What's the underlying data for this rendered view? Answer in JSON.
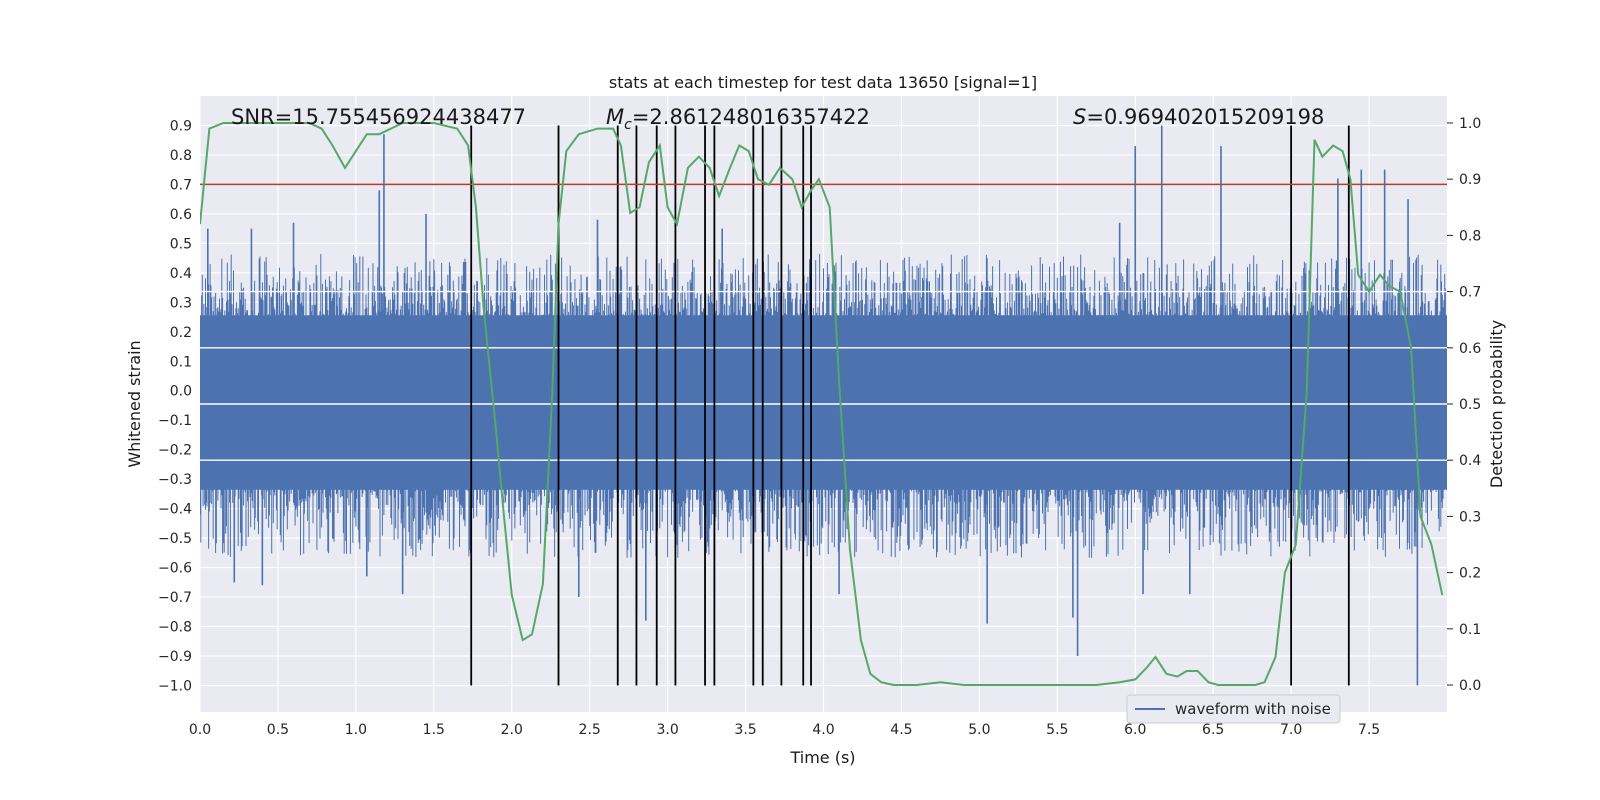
{
  "chart_data": {
    "type": "line",
    "title": "stats at each timestep for test data 13650 [signal=1]",
    "xlabel": "Time (s)",
    "ylabel": "Whitened strain",
    "y2label": "Detection probability",
    "xlim": [
      0.0,
      8.0
    ],
    "ylim": [
      -1.09,
      1.0
    ],
    "y2lim": [
      -0.048,
      1.048
    ],
    "x_ticks": [
      0.0,
      0.5,
      1.0,
      1.5,
      2.0,
      2.5,
      3.0,
      3.5,
      4.0,
      4.5,
      5.0,
      5.5,
      6.0,
      6.5,
      7.0,
      7.5
    ],
    "x_tick_labels": [
      "0.0",
      "0.5",
      "1.0",
      "1.5",
      "2.0",
      "2.5",
      "3.0",
      "3.5",
      "4.0",
      "4.5",
      "5.0",
      "5.5",
      "6.0",
      "6.5",
      "7.0",
      "7.5"
    ],
    "y_ticks": [
      0.9,
      0.8,
      0.7,
      0.6,
      0.5,
      0.4,
      0.3,
      0.2,
      0.1,
      0.0,
      -0.1,
      -0.2,
      -0.3,
      -0.4,
      -0.5,
      -0.6,
      -0.7,
      -0.8,
      -0.9,
      -1.0
    ],
    "y_tick_labels": [
      "0.9",
      "0.8",
      "0.7",
      "0.6",
      "0.5",
      "0.4",
      "0.3",
      "0.2",
      "0.1",
      "0.0",
      "−0.1",
      "−0.2",
      "−0.3",
      "−0.4",
      "−0.5",
      "−0.6",
      "−0.7",
      "−0.8",
      "−0.9",
      "−1.0"
    ],
    "y2_ticks": [
      1.0,
      0.9,
      0.8,
      0.7,
      0.6,
      0.5,
      0.4,
      0.3,
      0.2,
      0.1,
      0.0
    ],
    "y2_tick_labels": [
      "1.0",
      "0.9",
      "0.8",
      "0.7",
      "0.6",
      "0.5",
      "0.4",
      "0.3",
      "0.2",
      "0.1",
      "0.0"
    ],
    "annotations": {
      "snr": "SNR=15.755456924438477",
      "mc_symbol": "M",
      "mc_sub": "c",
      "mc_value": "=2.861248016357422",
      "s_symbol": "S",
      "s_value": "=0.969402015209198"
    },
    "legend": {
      "label": "waveform with noise",
      "position": "lower-right"
    },
    "threshold": {
      "value": 0.7,
      "axis": "left",
      "color": "#c0392b"
    },
    "vertical_markers": [
      1.74,
      2.3,
      2.68,
      2.8,
      2.93,
      3.05,
      3.24,
      3.3,
      3.55,
      3.61,
      3.73,
      3.87,
      3.92,
      7.0,
      7.37
    ],
    "vertical_marker_range": [
      -1.0,
      0.9
    ],
    "waveform": {
      "name": "waveform with noise",
      "color": "#4c72b0",
      "envelope_pos": 0.32,
      "envelope_neg": -0.42,
      "spikes": [
        {
          "x": 0.05,
          "y": 0.55
        },
        {
          "x": 0.33,
          "y": 0.55
        },
        {
          "x": 0.6,
          "y": 0.57
        },
        {
          "x": 1.18,
          "y": 0.87
        },
        {
          "x": 1.15,
          "y": 0.68
        },
        {
          "x": 1.45,
          "y": 0.6
        },
        {
          "x": 2.3,
          "y": 0.62
        },
        {
          "x": 2.55,
          "y": 0.58
        },
        {
          "x": 3.35,
          "y": 0.55
        },
        {
          "x": 5.9,
          "y": 0.57
        },
        {
          "x": 6.0,
          "y": 0.83
        },
        {
          "x": 6.17,
          "y": 0.9
        },
        {
          "x": 6.55,
          "y": 0.83
        },
        {
          "x": 7.3,
          "y": 0.72
        },
        {
          "x": 7.45,
          "y": 0.75
        },
        {
          "x": 7.6,
          "y": 0.75
        },
        {
          "x": 7.75,
          "y": 0.65
        },
        {
          "x": 0.22,
          "y": -0.65
        },
        {
          "x": 0.4,
          "y": -0.66
        },
        {
          "x": 1.07,
          "y": -0.63
        },
        {
          "x": 1.3,
          "y": -0.69
        },
        {
          "x": 2.43,
          "y": -0.7
        },
        {
          "x": 2.8,
          "y": -0.76
        },
        {
          "x": 2.86,
          "y": -0.78
        },
        {
          "x": 3.3,
          "y": -0.73
        },
        {
          "x": 4.1,
          "y": -0.69
        },
        {
          "x": 5.05,
          "y": -0.79
        },
        {
          "x": 5.6,
          "y": -0.77
        },
        {
          "x": 5.63,
          "y": -0.9
        },
        {
          "x": 6.05,
          "y": -0.69
        },
        {
          "x": 6.35,
          "y": -0.69
        },
        {
          "x": 7.81,
          "y": -1.0
        }
      ]
    },
    "probability": {
      "name": "detection probability",
      "color": "#55a868",
      "x": [
        0.0,
        0.06,
        0.15,
        0.3,
        0.5,
        0.7,
        0.78,
        0.85,
        0.93,
        1.0,
        1.07,
        1.15,
        1.3,
        1.5,
        1.65,
        1.72,
        1.77,
        1.82,
        1.9,
        1.95,
        2.0,
        2.07,
        2.13,
        2.2,
        2.26,
        2.3,
        2.35,
        2.43,
        2.55,
        2.65,
        2.7,
        2.76,
        2.82,
        2.88,
        2.95,
        3.0,
        3.06,
        3.13,
        3.2,
        3.27,
        3.33,
        3.4,
        3.46,
        3.52,
        3.58,
        3.65,
        3.72,
        3.8,
        3.86,
        3.92,
        3.97,
        4.04,
        4.1,
        4.17,
        4.24,
        4.3,
        4.37,
        4.45,
        4.6,
        4.75,
        4.9,
        5.0,
        5.3,
        5.6,
        5.75,
        5.9,
        6.0,
        6.07,
        6.13,
        6.2,
        6.27,
        6.33,
        6.4,
        6.47,
        6.53,
        6.6,
        6.7,
        6.77,
        6.83,
        6.9,
        6.96,
        7.03,
        7.1,
        7.15,
        7.2,
        7.27,
        7.33,
        7.38,
        7.43,
        7.5,
        7.57,
        7.63,
        7.7,
        7.77,
        7.83,
        7.9,
        7.97
      ],
      "y": [
        0.82,
        0.99,
        1.0,
        1.0,
        1.0,
        1.0,
        0.99,
        0.96,
        0.92,
        0.95,
        0.98,
        0.98,
        1.0,
        1.0,
        0.99,
        0.96,
        0.85,
        0.67,
        0.45,
        0.3,
        0.16,
        0.08,
        0.09,
        0.18,
        0.52,
        0.82,
        0.95,
        0.98,
        0.99,
        0.99,
        0.96,
        0.84,
        0.85,
        0.93,
        0.96,
        0.85,
        0.82,
        0.92,
        0.94,
        0.92,
        0.87,
        0.92,
        0.96,
        0.95,
        0.9,
        0.89,
        0.92,
        0.9,
        0.85,
        0.88,
        0.9,
        0.85,
        0.54,
        0.24,
        0.08,
        0.02,
        0.005,
        0.0,
        0.0,
        0.005,
        0.0,
        0.0,
        0.0,
        0.0,
        0.0,
        0.005,
        0.01,
        0.03,
        0.05,
        0.02,
        0.015,
        0.025,
        0.025,
        0.005,
        0.0,
        0.0,
        0.0,
        0.0,
        0.005,
        0.05,
        0.2,
        0.25,
        0.52,
        0.97,
        0.94,
        0.96,
        0.95,
        0.9,
        0.73,
        0.7,
        0.73,
        0.71,
        0.7,
        0.6,
        0.3,
        0.25,
        0.16
      ]
    }
  },
  "colors": {
    "plot_background": "#eaeaf2",
    "grid": "#ffffff",
    "marker": "#000000"
  }
}
